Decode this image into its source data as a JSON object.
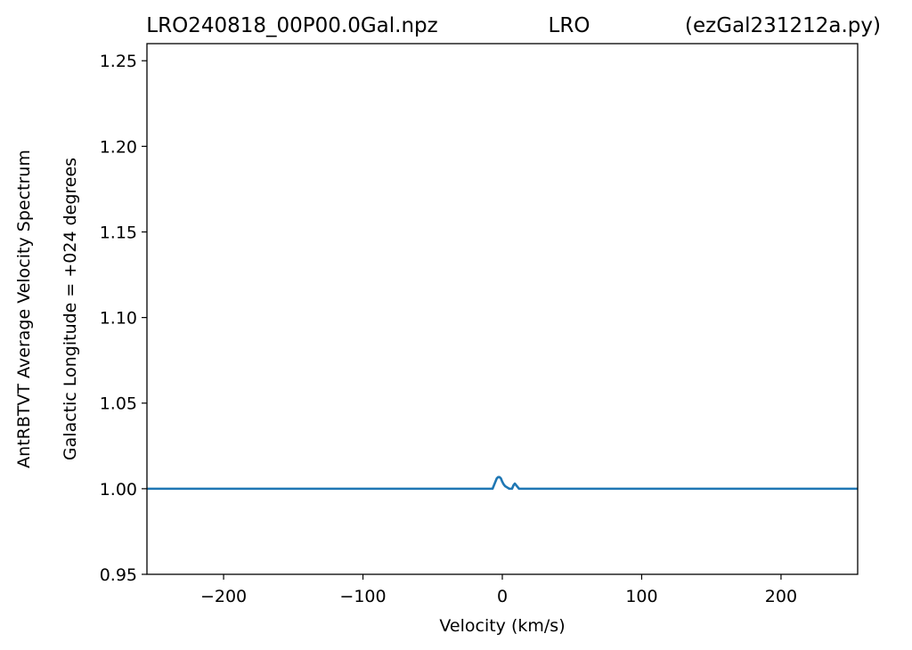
{
  "chart_data": {
    "type": "line",
    "title_left": "LRO240818_00P00.0Gal.npz",
    "title_center": "LRO",
    "title_right": "(ezGal231212a.py)",
    "xlabel": "Velocity (km/s)",
    "ylabel_outer": "AntRBTVT Average Velocity Spectrum",
    "ylabel_inner": "Galactic Longitude = +024 degrees",
    "xlim": [
      -255,
      255
    ],
    "ylim": [
      0.95,
      1.26
    ],
    "xticks": [
      -200,
      -100,
      0,
      100,
      200
    ],
    "xtick_labels": [
      "−200",
      "−100",
      "0",
      "100",
      "200"
    ],
    "yticks": [
      0.95,
      1.0,
      1.05,
      1.1,
      1.15,
      1.2,
      1.25
    ],
    "ytick_labels": [
      "0.95",
      "1.00",
      "1.05",
      "1.10",
      "1.15",
      "1.20",
      "1.25"
    ],
    "grid": false,
    "series": [
      {
        "color": "#1f77b4",
        "x": [
          -255,
          -7,
          -5,
          -4,
          -3,
          -2,
          -1,
          0,
          1,
          2,
          3,
          5,
          7,
          8,
          9,
          10,
          11,
          12,
          255
        ],
        "y": [
          1.0,
          1.0,
          1.004,
          1.006,
          1.0068,
          1.0068,
          1.006,
          1.004,
          1.0025,
          1.0015,
          1.001,
          1.0,
          1.0,
          1.002,
          1.003,
          1.002,
          1.001,
          1.0,
          1.0
        ]
      }
    ]
  }
}
